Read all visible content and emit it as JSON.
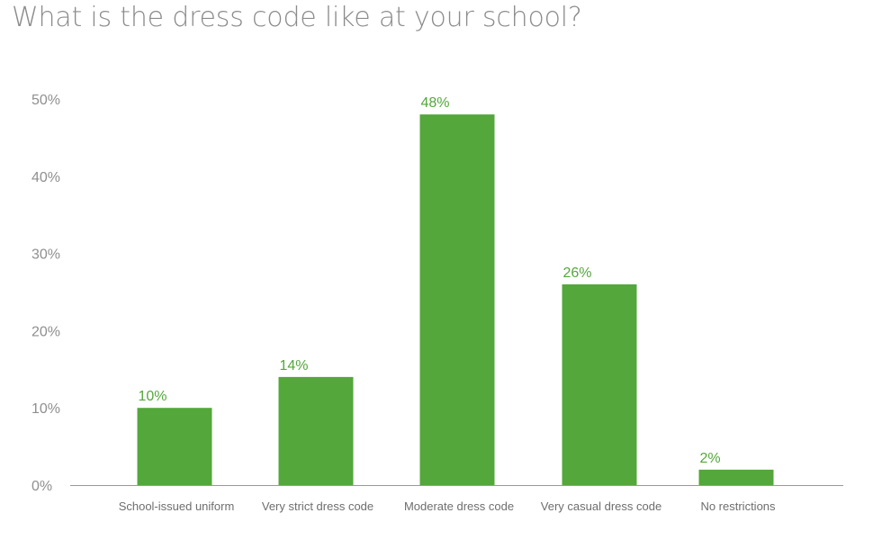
{
  "title": "What is the dress code like at your school?",
  "colors": {
    "bar": "#54a73b",
    "data_label": "#54a73b",
    "axis": "#9a9a9a"
  },
  "chart_data": {
    "type": "bar",
    "title": "What is the dress code like at your school?",
    "xlabel": "",
    "ylabel": "",
    "categories": [
      "School-issued uniform",
      "Very strict dress code",
      "Moderate dress code",
      "Very casual dress code",
      "No restrictions"
    ],
    "values": [
      10,
      14,
      48,
      26,
      2
    ],
    "data_labels": [
      "10%",
      "14%",
      "48%",
      "26%",
      "2%"
    ],
    "ylim": [
      0,
      50
    ],
    "yticks": [
      0,
      10,
      20,
      30,
      40,
      50
    ],
    "ytick_labels": [
      "0%",
      "10%",
      "20%",
      "30%",
      "40%",
      "50%"
    ],
    "grid": false,
    "legend": "none"
  }
}
